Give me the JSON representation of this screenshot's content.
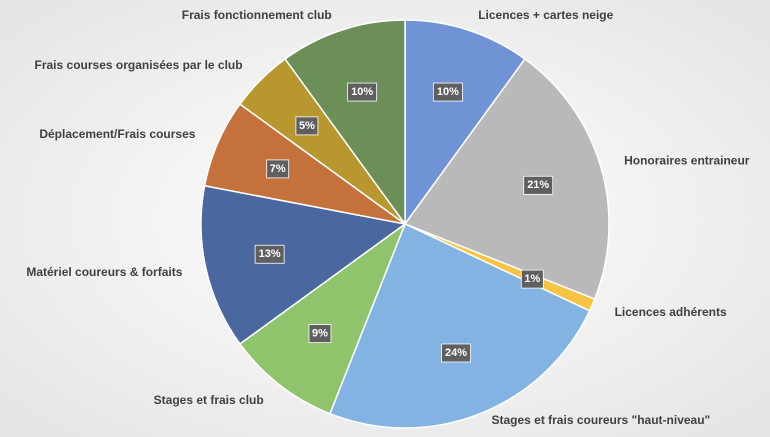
{
  "chart_data": {
    "type": "pie",
    "categories": [
      "Licences + cartes neige",
      "Honoraires entraineur",
      "Licences adhérents",
      "Stages et frais coureurs \"haut-niveau\"",
      "Stages et frais club",
      "Matériel coureurs & forfaits",
      "Déplacement/Frais courses",
      "Frais courses organisées par le club",
      "Frais fonctionnement club"
    ],
    "values": [
      10,
      21,
      1,
      24,
      9,
      13,
      7,
      5,
      10
    ],
    "value_labels": [
      "10%",
      "21%",
      "1%",
      "24%",
      "9%",
      "13%",
      "7%",
      "5%",
      "10%"
    ],
    "colors": [
      "#7093d6",
      "#b9b9b9",
      "#f6c343",
      "#82b3e3",
      "#90c46c",
      "#4b679f",
      "#c4713b",
      "#b9972f",
      "#6b8f56"
    ]
  }
}
